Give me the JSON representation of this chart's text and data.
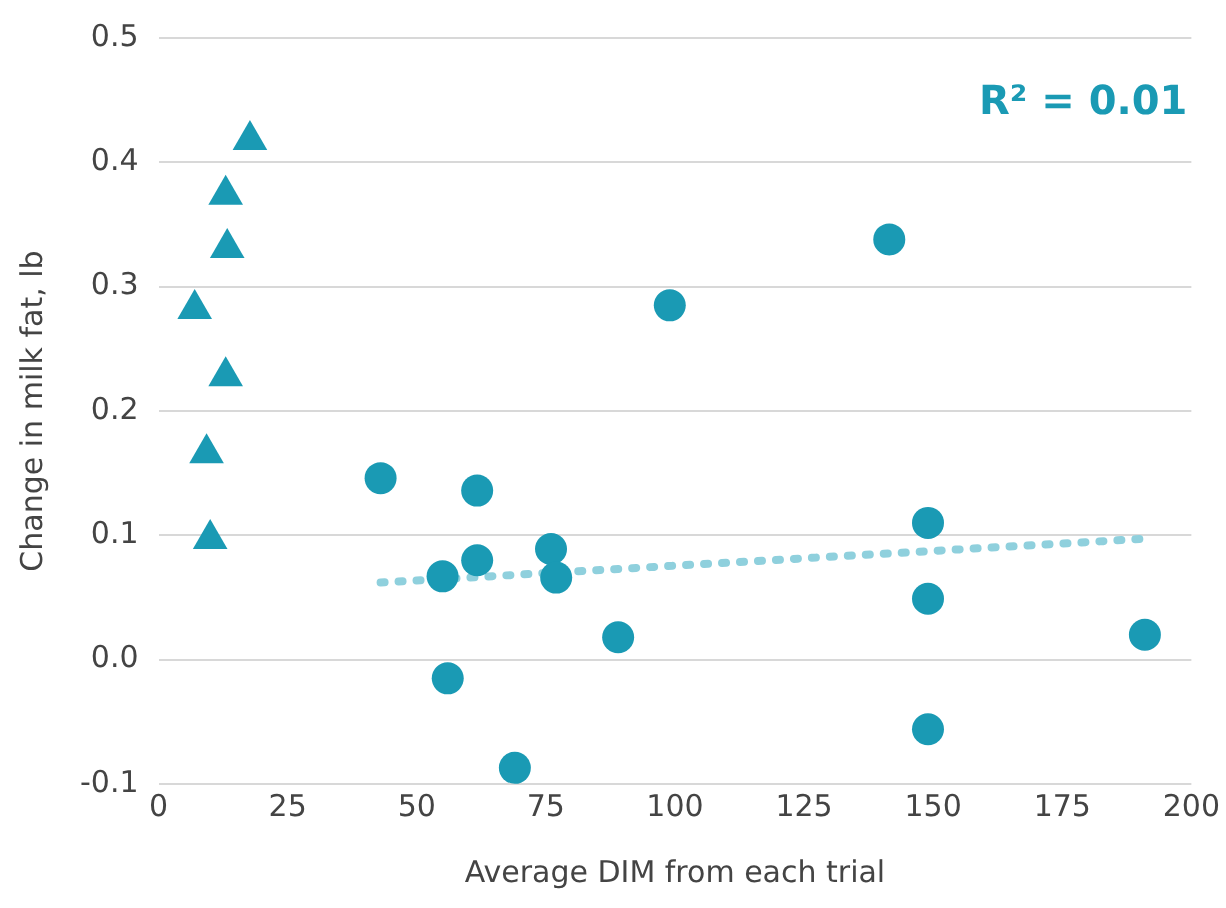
{
  "chart_data": {
    "type": "scatter",
    "xlabel": "Average DIM from each trial",
    "ylabel": "Change in milk fat, lb",
    "xlim": [
      0,
      200
    ],
    "xticks": [
      0,
      25,
      50,
      75,
      100,
      125,
      150,
      175,
      200
    ],
    "ylim": [
      -0.1,
      0.5
    ],
    "yticks": [
      -0.1,
      {
        "value": 0,
        "label": "0.0"
      },
      0.1,
      0.2,
      0.3,
      0.4,
      0.5
    ],
    "grid": "y",
    "legend": false,
    "annotations": [
      "R² = 0.01"
    ],
    "series": [
      {
        "marker": "triangle",
        "color": "#1a9ab4",
        "x": [
          7,
          17.7,
          13,
          13.3,
          13,
          9.3,
          10
        ],
        "values": [
          0.282,
          0.418,
          0.374,
          0.331,
          0.228,
          0.166,
          0.097
        ]
      },
      {
        "marker": "circle",
        "color": "#1a9ab4",
        "x": [
          43,
          61.7,
          61.7,
          55,
          76,
          77,
          56,
          69,
          89,
          99,
          141.5,
          149,
          149,
          149,
          191
        ],
        "values": [
          0.146,
          0.136,
          0.08,
          0.067,
          0.089,
          0.066,
          -0.015,
          -0.087,
          0.018,
          0.285,
          0.338,
          0.11,
          0.049,
          -0.056,
          0.02
        ]
      },
      {
        "type": "line",
        "marker": "none",
        "line_style": "dotted",
        "color": "#8fd0dd",
        "x": [
          43,
          190
        ],
        "values": [
          0.062,
          0.097
        ]
      }
    ]
  }
}
